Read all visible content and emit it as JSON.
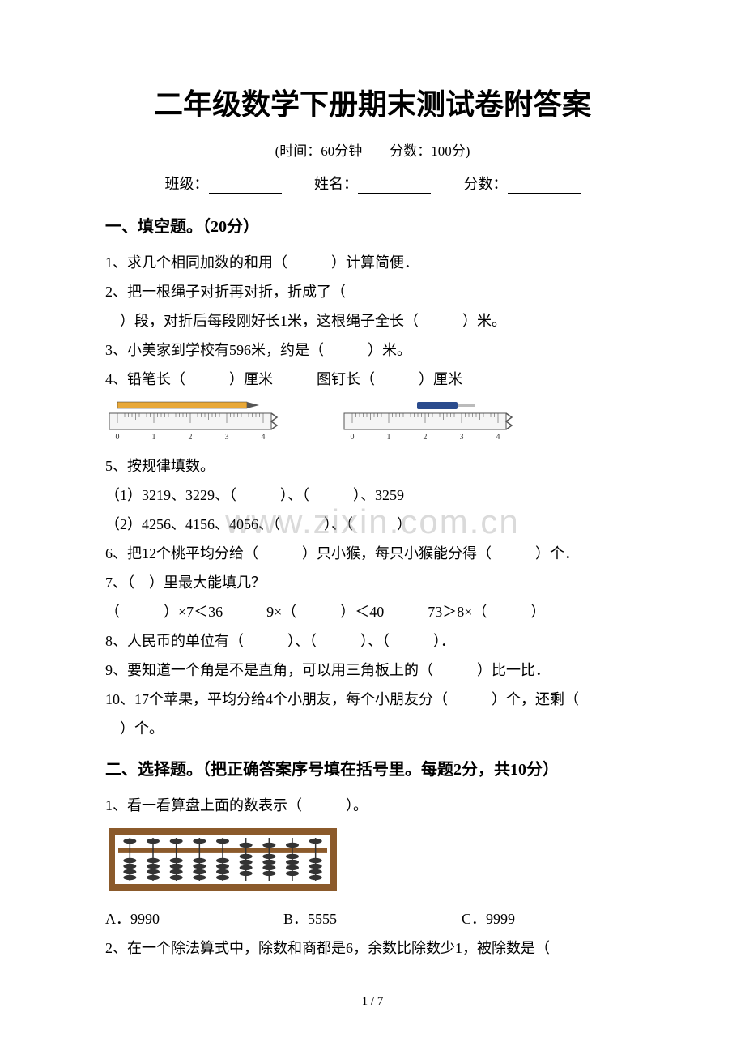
{
  "title": "二年级数学下册期末测试卷附答案",
  "subtitle": "(时间：60分钟　　分数：100分)",
  "formline": {
    "class_label": "班级：",
    "name_label": "姓名：",
    "score_label": "分数："
  },
  "section1": {
    "header": "一、填空题。（20分）",
    "q1": "1、求几个相同加数的和用（　　　）计算简便．",
    "q2a": "2、把一根绳子对折再对折，折成了（　",
    "q2b": "　）段，对折后每段刚好长1米，这根绳子全长（　　　）米。",
    "q3": "3、小美家到学校有596米，约是（　　　）米。",
    "q4": "4、铅笔长（　　　）厘米　　　图钉长（　　　）厘米",
    "q5": "5、按规律填数。",
    "q5_1": "（1）3219、3229、（　　　）、（　　　）、3259",
    "q5_2": "（2）4256、4156、4056、（　　　）、（　　　）",
    "q6": "6、把12个桃平均分给（　　　）只小猴，每只小猴能分得（　　　）个．",
    "q7": "7、（　）里最大能填几？",
    "q7_opts": "（　　　）×7＜36　　　9×（　　　）＜40　　　73＞8×（　　　）",
    "q8": "8、人民币的单位有（　　　）、（　　　）、（　　　）．",
    "q9": "9、要知道一个角是不是直角，可以用三角板上的（　　　）比一比．",
    "q10a": "10、17个苹果，平均分给4个小朋友，每个小朋友分（　　　）个，还剩（　",
    "q10b": "　）个。"
  },
  "section2": {
    "header": "二、选择题。（把正确答案序号填在括号里。每题2分，共10分）",
    "q1": "1、看一看算盘上面的数表示（　　　）。",
    "q1_choices": {
      "a": "A．9990",
      "b": "B．5555",
      "c": "C．9999"
    },
    "q2": "2、在一个除法算式中，除数和商都是6，余数比除数少1，被除数是（　"
  },
  "ruler1": {
    "pencil_color": "#e8a838",
    "tip_color": "#555555",
    "ruler_fill": "#f5f5f5",
    "ruler_stroke": "#555555",
    "ticks": [
      0,
      1,
      2,
      3,
      4
    ]
  },
  "ruler2": {
    "tack_body": "#2a4b8d",
    "tack_pin": "#bbbbbb",
    "ruler_fill": "#f5f5f5",
    "ruler_stroke": "#555555",
    "ticks": [
      0,
      1,
      2,
      3,
      4
    ]
  },
  "abacus": {
    "frame_color": "#8b5a2b",
    "frame_dark": "#6b4320",
    "rod_color": "#333333",
    "bead_color": "#333333",
    "columns": 9,
    "config": [
      {
        "upper_down": false,
        "lower_up": 0
      },
      {
        "upper_down": false,
        "lower_up": 0
      },
      {
        "upper_down": false,
        "lower_up": 0
      },
      {
        "upper_down": false,
        "lower_up": 0
      },
      {
        "upper_down": false,
        "lower_up": 0
      },
      {
        "upper_down": true,
        "lower_up": 4
      },
      {
        "upper_down": true,
        "lower_up": 4
      },
      {
        "upper_down": true,
        "lower_up": 4
      },
      {
        "upper_down": false,
        "lower_up": 0
      }
    ]
  },
  "watermark": "www.zixin.com.cn",
  "page_num": "1 / 7"
}
